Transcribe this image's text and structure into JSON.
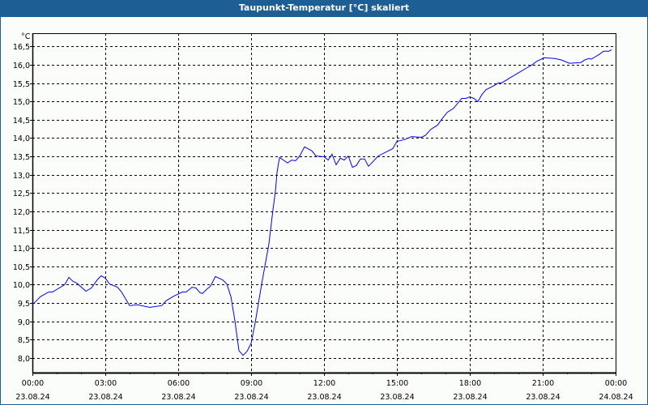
{
  "window": {
    "title": "Taupunkt-Temperatur [°C] skaliert"
  },
  "colors": {
    "titlebar": "#1d5f94",
    "line": "#0000ff",
    "grid": "#000000",
    "background": "#fbfdfb"
  },
  "chart_data": {
    "type": "line",
    "title": "Taupunkt-Temperatur [°C] skaliert",
    "ylabel": "°C",
    "xlabel": "",
    "ylim": [
      7.6,
      16.86
    ],
    "xlim_hours": [
      0,
      24
    ],
    "grid": true,
    "y_ticks": [
      8.0,
      8.5,
      9.0,
      9.5,
      10.0,
      10.5,
      11.0,
      11.5,
      12.0,
      12.5,
      13.0,
      13.5,
      14.0,
      14.5,
      15.0,
      15.5,
      16.0,
      16.5
    ],
    "y_tick_labels": [
      "8,0",
      "8,5",
      "9,0",
      "9,5",
      "10,0",
      "10,5",
      "11,0",
      "11,5",
      "12,0",
      "12,5",
      "13,0",
      "13,5",
      "14,0",
      "14,5",
      "15,0",
      "15,5",
      "16,0",
      "16,5"
    ],
    "x_ticks_hours": [
      0,
      3,
      6,
      9,
      12,
      15,
      18,
      21,
      24
    ],
    "x_tick_times": [
      "00:00",
      "03:00",
      "06:00",
      "09:00",
      "12:00",
      "15:00",
      "18:00",
      "21:00",
      "00:00"
    ],
    "x_tick_dates": [
      "23.08.24",
      "23.08.24",
      "23.08.24",
      "23.08.24",
      "23.08.24",
      "23.08.24",
      "23.08.24",
      "23.08.24",
      "24.08.24"
    ],
    "series": [
      {
        "name": "Taupunkt-Temperatur",
        "x_hours": [
          0,
          0.33,
          0.67,
          0.83,
          1.33,
          1.5,
          1.67,
          1.83,
          2.2,
          2.43,
          2.67,
          2.83,
          3.0,
          3.17,
          3.5,
          3.67,
          4.0,
          4.33,
          4.83,
          5.33,
          5.5,
          5.83,
          6.17,
          6.33,
          6.57,
          6.73,
          6.9,
          7.0,
          7.17,
          7.33,
          7.53,
          7.83,
          8.0,
          8.17,
          8.33,
          8.5,
          8.67,
          8.83,
          9.0,
          9.17,
          9.43,
          9.73,
          9.9,
          10.0,
          10.07,
          10.17,
          10.5,
          10.67,
          10.83,
          11.0,
          11.2,
          11.5,
          11.67,
          12.0,
          12.17,
          12.33,
          12.5,
          12.67,
          12.83,
          13.0,
          13.17,
          13.33,
          13.5,
          13.67,
          13.83,
          14.23,
          14.83,
          15.0,
          15.33,
          15.6,
          16.0,
          16.17,
          16.4,
          16.67,
          16.83,
          17.07,
          17.33,
          17.67,
          17.83,
          18.0,
          18.17,
          18.33,
          18.5,
          18.67,
          19.0,
          19.17,
          19.33,
          19.67,
          20.0,
          20.33,
          20.57,
          20.77,
          21.07,
          21.5,
          21.77,
          22.1,
          22.57,
          22.73,
          22.9,
          23.0,
          23.17,
          23.33,
          23.5,
          23.73,
          23.83
        ],
        "values": [
          9.45,
          9.67,
          9.8,
          9.8,
          10.0,
          10.2,
          10.09,
          10.04,
          9.82,
          9.91,
          10.13,
          10.24,
          10.18,
          10.02,
          9.93,
          9.8,
          9.43,
          9.45,
          9.38,
          9.43,
          9.56,
          9.69,
          9.8,
          9.8,
          9.93,
          9.91,
          9.78,
          9.76,
          9.87,
          9.96,
          10.22,
          10.13,
          10.02,
          9.67,
          9.03,
          8.2,
          8.07,
          8.18,
          8.4,
          8.97,
          10.0,
          11.1,
          12.04,
          12.55,
          13.08,
          13.47,
          13.32,
          13.4,
          13.38,
          13.51,
          13.76,
          13.65,
          13.51,
          13.49,
          13.4,
          13.56,
          13.27,
          13.45,
          13.4,
          13.51,
          13.2,
          13.25,
          13.43,
          13.43,
          13.23,
          13.51,
          13.71,
          13.91,
          13.96,
          14.04,
          14.02,
          14.07,
          14.24,
          14.35,
          14.5,
          14.7,
          14.81,
          15.08,
          15.08,
          15.12,
          15.08,
          14.99,
          15.19,
          15.32,
          15.43,
          15.5,
          15.51,
          15.65,
          15.78,
          15.91,
          16.0,
          16.1,
          16.19,
          16.17,
          16.13,
          16.04,
          16.06,
          16.13,
          16.17,
          16.15,
          16.22,
          16.28,
          16.37,
          16.37,
          16.41
        ]
      }
    ]
  }
}
